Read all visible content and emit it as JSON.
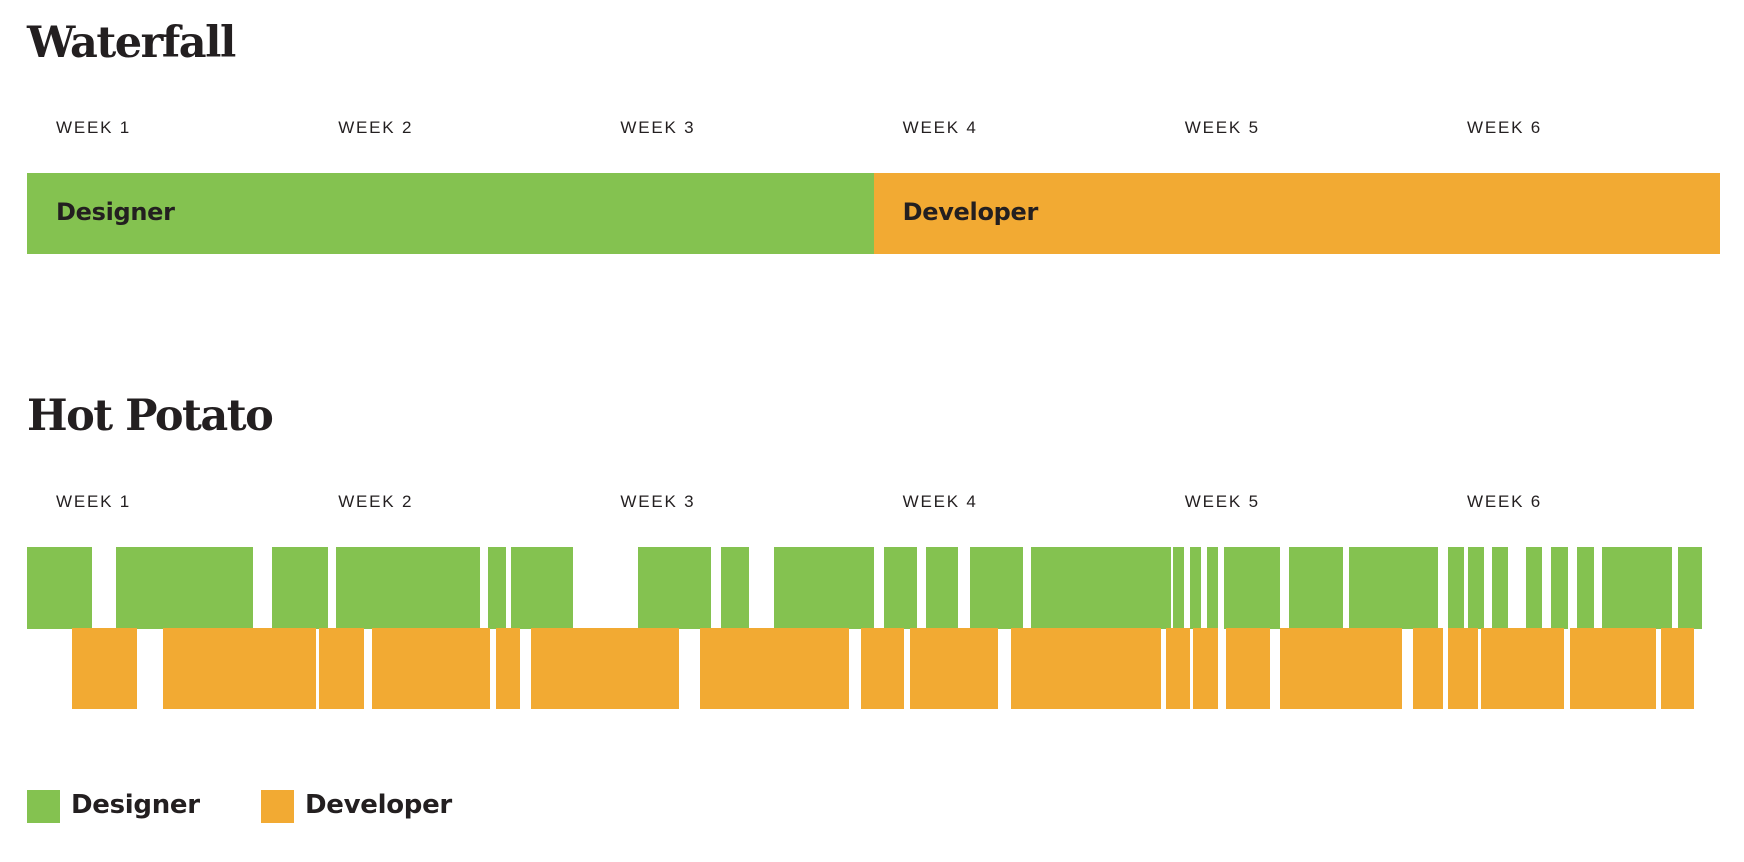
{
  "colors": {
    "designer": "#84c250",
    "developer": "#f2aa33",
    "text": "#231f20"
  },
  "waterfall": {
    "title": "Waterfall",
    "weeks": [
      "WEEK 1",
      "WEEK 2",
      "WEEK 3",
      "WEEK 4",
      "WEEK 5",
      "WEEK 6"
    ],
    "segments": [
      {
        "label": "Designer",
        "role": "designer",
        "start_week": 0,
        "end_week": 3
      },
      {
        "label": "Developer",
        "role": "developer",
        "start_week": 3,
        "end_week": 6
      }
    ]
  },
  "hot_potato": {
    "title": "Hot Potato",
    "weeks": [
      "WEEK 1",
      "WEEK 2",
      "WEEK 3",
      "WEEK 4",
      "WEEK 5",
      "WEEK 6"
    ],
    "designer_blocks": [
      [
        0.0,
        0.229
      ],
      [
        0.315,
        0.802
      ],
      [
        0.869,
        1.067
      ],
      [
        1.095,
        1.606
      ],
      [
        1.633,
        1.699
      ],
      [
        1.716,
        1.936
      ],
      [
        2.164,
        2.424
      ],
      [
        2.459,
        2.558
      ],
      [
        2.646,
        3.0
      ],
      [
        3.036,
        3.153
      ],
      [
        3.186,
        3.299
      ],
      [
        3.342,
        3.528
      ],
      [
        3.557,
        4.053
      ],
      [
        4.062,
        4.101
      ],
      [
        4.121,
        4.16
      ],
      [
        4.18,
        4.219
      ],
      [
        4.243,
        4.44
      ],
      [
        4.472,
        4.665
      ],
      [
        4.685,
        5.0
      ],
      [
        5.035,
        5.093
      ],
      [
        5.106,
        5.164
      ],
      [
        5.19,
        5.248
      ],
      [
        5.311,
        5.37
      ],
      [
        5.4,
        5.459
      ],
      [
        5.494,
        5.552
      ],
      [
        5.582,
        5.829
      ],
      [
        5.85,
        5.936
      ]
    ],
    "developer_blocks": [
      [
        0.159,
        0.389
      ],
      [
        0.482,
        1.024
      ],
      [
        1.035,
        1.194
      ],
      [
        1.221,
        1.64
      ],
      [
        1.662,
        1.747
      ],
      [
        1.785,
        2.31
      ],
      [
        2.386,
        2.912
      ],
      [
        2.957,
        3.108
      ],
      [
        3.128,
        3.441
      ],
      [
        3.487,
        4.018
      ],
      [
        4.036,
        4.12
      ],
      [
        4.133,
        4.22
      ],
      [
        4.249,
        4.405
      ],
      [
        4.44,
        4.871
      ],
      [
        4.91,
        5.016
      ],
      [
        5.035,
        5.141
      ],
      [
        5.154,
        5.445
      ],
      [
        5.466,
        5.771
      ],
      [
        5.789,
        5.907
      ]
    ]
  },
  "legend": [
    {
      "label": "Designer",
      "role": "designer"
    },
    {
      "label": "Developer",
      "role": "developer"
    }
  ]
}
